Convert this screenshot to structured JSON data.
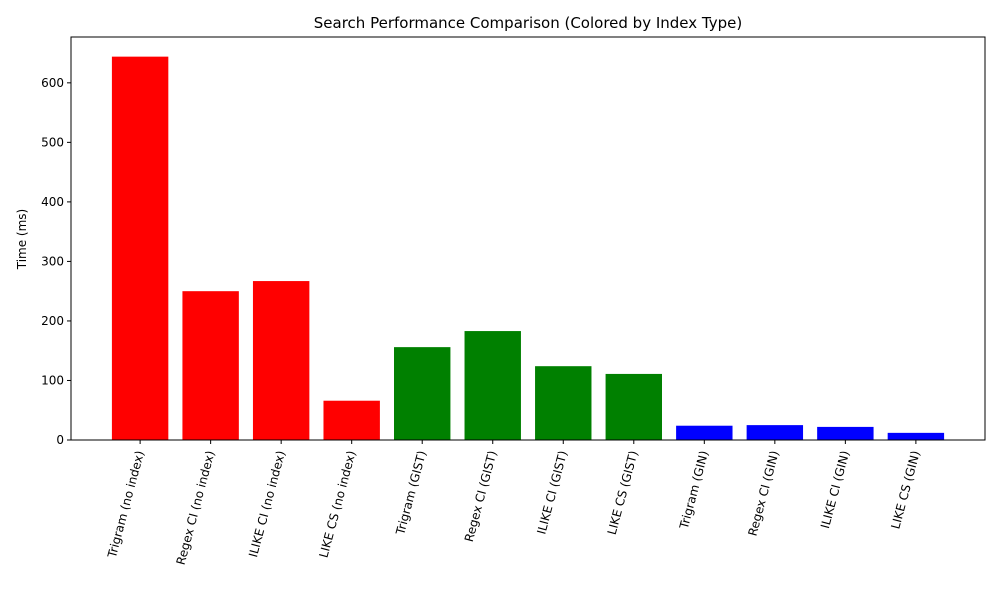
{
  "chart_data": {
    "type": "bar",
    "title": "Search Performance Comparison (Colored by Index Type)",
    "y_label": "Time (ms)",
    "categories": [
      "Trigram (no index)",
      "Regex CI (no index)",
      "ILIKE CI (no index)",
      "LIKE CS (no index)",
      "Trigram (GIST)",
      "Regex CI (GIST)",
      "ILIKE CI (GIST)",
      "LIKE CS (GIST)",
      "Trigram (GIN)",
      "Regex CI (GIN)",
      "ILIKE CI (GIN)",
      "LIKE CS (GIN)"
    ],
    "values": [
      644,
      250,
      267,
      66,
      156,
      183,
      124,
      111,
      24,
      25,
      22,
      12
    ],
    "colors": [
      "red",
      "red",
      "red",
      "red",
      "green",
      "green",
      "green",
      "green",
      "blue",
      "blue",
      "blue",
      "blue"
    ],
    "ylim": [
      0,
      677
    ],
    "yticks": [
      0,
      100,
      200,
      300,
      400,
      500,
      600
    ],
    "grid": false
  }
}
